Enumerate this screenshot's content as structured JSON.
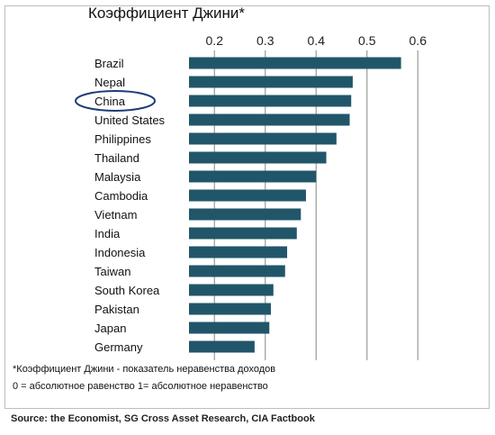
{
  "chart_data": {
    "type": "bar",
    "orientation": "horizontal",
    "title": "Коэффициент Джини*",
    "categories": [
      "Brazil",
      "Nepal",
      "China",
      "United States",
      "Philippines",
      "Thailand",
      "Malaysia",
      "Cambodia",
      "Vietnam",
      "India",
      "Indonesia",
      "Taiwan",
      "South Korea",
      "Pakistan",
      "Japan",
      "Germany"
    ],
    "values": [
      0.567,
      0.472,
      0.469,
      0.466,
      0.44,
      0.42,
      0.4,
      0.38,
      0.37,
      0.362,
      0.343,
      0.339,
      0.316,
      0.311,
      0.308,
      0.279
    ],
    "xlim": [
      0.15,
      0.62
    ],
    "xticks": [
      "0.2",
      "0.3",
      "0.4",
      "0.5",
      "0.6"
    ],
    "grid": "vertical",
    "bar_color": "#21566a",
    "highlight": "China",
    "highlight_color": "#1e3c78"
  },
  "footnote": {
    "line1": "*Коэффициент Джини - показатель неравенства доходов",
    "line2": "0 = абсолютное равенство   1= абсолютное неравенство"
  },
  "source": "Source: the Economist, SG Cross Asset Research, CIA Factbook"
}
